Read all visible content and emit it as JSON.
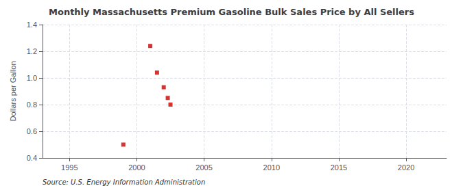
{
  "chart_data": {
    "type": "scatter",
    "title": "Monthly Massachusetts Premium Gasoline Bulk Sales Price by All Sellers",
    "ylabel": "Dollars per Gallon",
    "annotation": "Source: U.S. Energy Information Administration",
    "x": [
      1999.0,
      2001.0,
      2001.5,
      2002.0,
      2002.3,
      2002.5
    ],
    "values": [
      0.5,
      1.24,
      1.04,
      0.93,
      0.85,
      0.8
    ],
    "color": "#cc0000",
    "marker": "square",
    "xlim": [
      1993,
      2023
    ],
    "ylim": [
      0.4,
      1.4
    ],
    "xticks": [
      1995,
      2000,
      2005,
      2010,
      2015,
      2020
    ],
    "yticks": [
      0.4,
      0.6,
      0.8,
      {
        "value": 1.0,
        "label": "1.0"
      },
      1.2,
      1.4
    ],
    "grid": true
  }
}
